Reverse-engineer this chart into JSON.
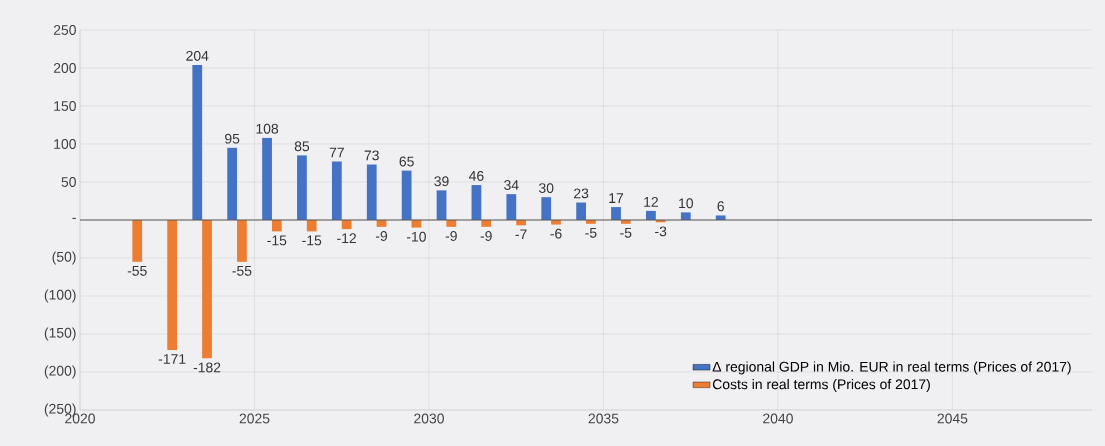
{
  "chart_data": {
    "type": "bar",
    "x": [
      2021.5,
      2022.5,
      2023.5,
      2024.5,
      2025.5,
      2026.5,
      2027.5,
      2028.5,
      2029.5,
      2030.5,
      2031.5,
      2032.5,
      2033.5,
      2034.5,
      2035.5,
      2036.5,
      2037.5,
      2038.5
    ],
    "series": [
      {
        "name": "Δ regional GDP in Mio. EUR in real terms (Prices of 2017)",
        "color": "#4472c4",
        "values": [
          null,
          null,
          204,
          95,
          108,
          85,
          77,
          73,
          65,
          39,
          46,
          34,
          30,
          23,
          17,
          12,
          10,
          6
        ],
        "value_labels": [
          null,
          null,
          "204",
          "95",
          "108",
          "85",
          "77",
          "73",
          "65",
          "39",
          "46",
          "34",
          "30",
          "23",
          "17",
          "12",
          "10",
          "6"
        ]
      },
      {
        "name": "Costs in real terms (Prices of 2017)",
        "color": "#ed7d31",
        "values": [
          -55,
          -171,
          -182,
          -55,
          -15,
          -15,
          -12,
          -9,
          -10,
          -9,
          -9,
          -7,
          -6,
          -5,
          -5,
          -3,
          null,
          null
        ],
        "value_labels": [
          "-55",
          "-171",
          "-182",
          "-55",
          "-15",
          "-15",
          "-12",
          "-9",
          "-10",
          "-9",
          "-9",
          "-7",
          "-6",
          "-5",
          "-5",
          "-3",
          null,
          null
        ]
      }
    ],
    "xlim": [
      2020,
      2049
    ],
    "xticks": [
      2020,
      2025,
      2030,
      2035,
      2040,
      2045
    ],
    "ylim": [
      -250,
      250
    ],
    "yticks": [
      {
        "value": -250,
        "label": "(250)"
      },
      {
        "value": -200,
        "label": "(200)"
      },
      {
        "value": -150,
        "label": "(150)"
      },
      {
        "value": -100,
        "label": "(100)"
      },
      {
        "value": -50,
        "label": "(50)"
      },
      {
        "value": 0,
        "label": "-"
      },
      50,
      100,
      150,
      200,
      250
    ],
    "ref_lines": [
      {
        "axis": "y",
        "value": 0,
        "color": "#595959"
      }
    ],
    "grid": true,
    "legend": "bottom right"
  }
}
